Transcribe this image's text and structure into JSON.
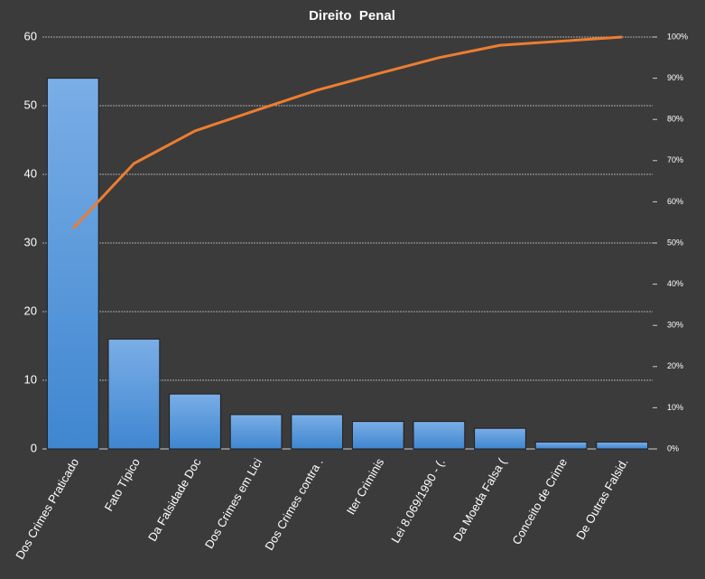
{
  "chart_data": {
    "type": "pareto",
    "title": "Direito  Penal",
    "categories": [
      "Dos Crimes Praticado",
      "Fato Típico",
      "Da Falsidade Doc",
      "Dos Crimes em Lici",
      "Dos Crimes contra .",
      "Iter Criminis",
      "Lei 8.069/1990 - (.",
      "Da Moeda Falsa (",
      "Conceito de Crime",
      "De Outras Falsid."
    ],
    "series": [
      {
        "type": "bar",
        "color": "#4a90d9",
        "values": [
          54,
          16,
          8,
          5,
          5,
          4,
          4,
          3,
          1,
          1
        ]
      },
      {
        "type": "line",
        "axis": "y2",
        "color": "#ed7d31",
        "values": [
          53.5,
          69.3,
          77.2,
          82.2,
          87.1,
          91.1,
          95.0,
          98.0,
          99.0,
          100
        ]
      }
    ],
    "ylim": [
      0,
      60
    ],
    "yticks": [
      0,
      10,
      20,
      30,
      40,
      50,
      60
    ],
    "y2lim": [
      0,
      100
    ],
    "y2ticks": [
      {
        "value": 0,
        "label": "0%"
      },
      {
        "value": 10,
        "label": "10%"
      },
      {
        "value": 20,
        "label": "20%"
      },
      {
        "value": 30,
        "label": "30%"
      },
      {
        "value": 40,
        "label": "40%"
      },
      {
        "value": 50,
        "label": "50%"
      },
      {
        "value": 60,
        "label": "60%"
      },
      {
        "value": 70,
        "label": "70%"
      },
      {
        "value": 80,
        "label": "80%"
      },
      {
        "value": 90,
        "label": "90%"
      },
      {
        "value": 100,
        "label": "100%"
      }
    ],
    "grid": true
  }
}
